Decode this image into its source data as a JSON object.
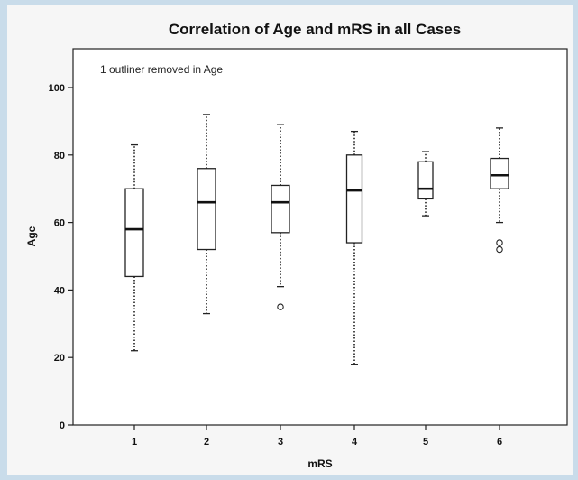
{
  "chart_data": {
    "type": "boxplot",
    "title": "Correlation of Age and mRS in all Cases",
    "xlabel": "mRS",
    "ylabel": "Age",
    "annotation": "1 outliner removed in Age",
    "categories": [
      "1",
      "2",
      "3",
      "4",
      "5",
      "6"
    ],
    "ylim": [
      0,
      110
    ],
    "yticks": [
      0,
      20,
      40,
      60,
      80,
      100
    ],
    "grid": false,
    "boxes": [
      {
        "category": "1",
        "min": 22,
        "q1": 44,
        "median": 58,
        "q3": 70,
        "max": 83,
        "outliers": []
      },
      {
        "category": "2",
        "min": 33,
        "q1": 52,
        "median": 66,
        "q3": 76,
        "max": 92,
        "outliers": []
      },
      {
        "category": "3",
        "min": 41,
        "q1": 57,
        "median": 66,
        "q3": 71,
        "max": 89,
        "outliers": [
          35
        ]
      },
      {
        "category": "4",
        "min": 18,
        "q1": 54,
        "median": 69.5,
        "q3": 80,
        "max": 87,
        "outliers": []
      },
      {
        "category": "5",
        "min": 62,
        "q1": 67,
        "median": 70,
        "q3": 78,
        "max": 81,
        "outliers": []
      },
      {
        "category": "6",
        "min": 60,
        "q1": 70,
        "median": 74,
        "q3": 79,
        "max": 88,
        "outliers": [
          52,
          54
        ]
      }
    ]
  }
}
